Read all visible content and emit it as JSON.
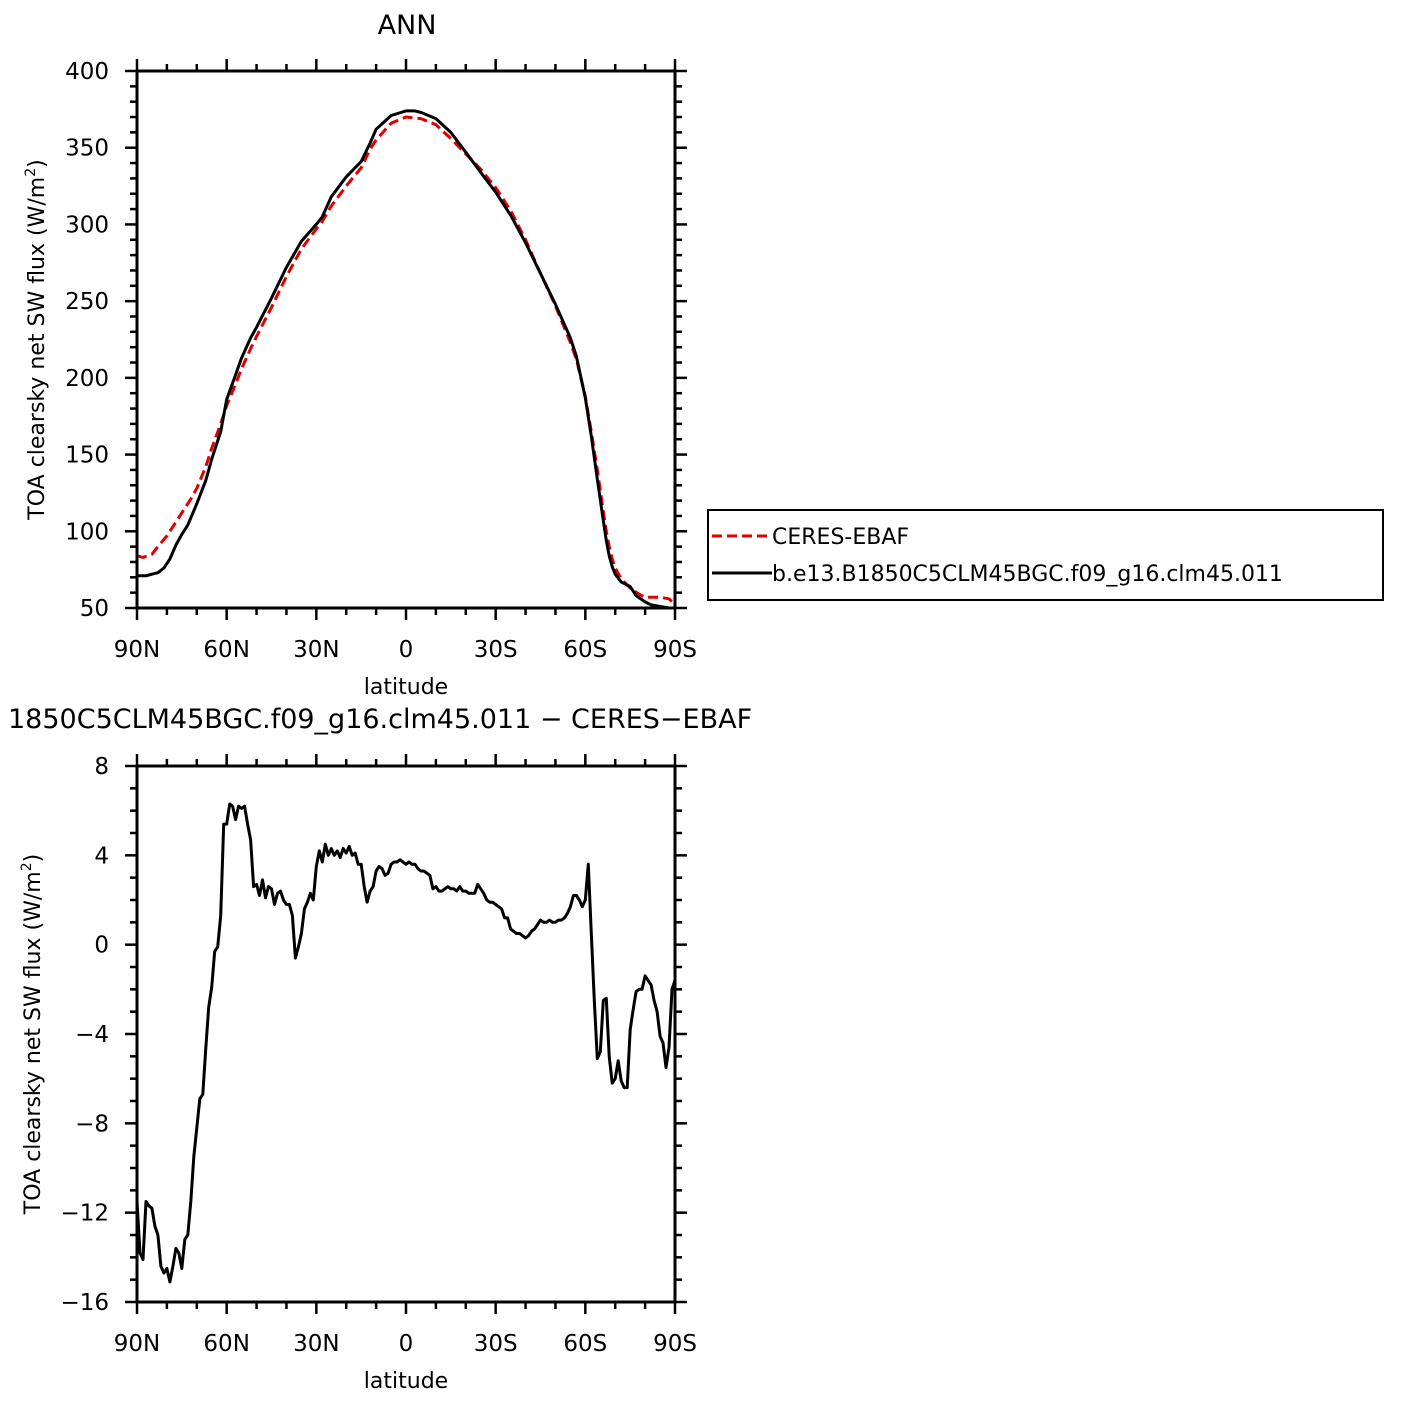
{
  "chart_data": [
    {
      "type": "line",
      "title": "ANN",
      "xlabel": "latitude",
      "ylabel": "TOA clearsky net SW flux (W/m²)",
      "ylabel_parts": {
        "main": "TOA clearsky net SW flux (W/m",
        "sup": "2",
        "end": ")"
      },
      "xlim": [
        -90,
        90
      ],
      "ylim": [
        50,
        400
      ],
      "x_ticks": [
        {
          "value": -90,
          "label": "90N"
        },
        {
          "value": -60,
          "label": "60N"
        },
        {
          "value": -30,
          "label": "30N"
        },
        {
          "value": 0,
          "label": "0"
        },
        {
          "value": 30,
          "label": "30S"
        },
        {
          "value": 60,
          "label": "60S"
        },
        {
          "value": 90,
          "label": "90S"
        }
      ],
      "y_ticks": [
        {
          "value": 400,
          "label": "400"
        },
        {
          "value": 350,
          "label": "350"
        },
        {
          "value": 300,
          "label": "300"
        },
        {
          "value": 250,
          "label": "250"
        },
        {
          "value": 200,
          "label": "200"
        },
        {
          "value": 150,
          "label": "150"
        },
        {
          "value": 100,
          "label": "100"
        },
        {
          "value": 50,
          "label": "50"
        }
      ],
      "legend": {
        "position": "right",
        "entries": [
          {
            "name": "CERES-EBAF",
            "color": "#e00000",
            "dash": "dashed"
          },
          {
            "name": "b.e13.B1850C5CLM45BGC.f09_g16.clm45.011",
            "color": "#000000",
            "dash": "solid"
          }
        ]
      },
      "series": [
        {
          "name": "CERES-EBAF",
          "color": "#e00000",
          "style": "dashed",
          "x": [
            -90,
            -88,
            -85,
            -83,
            -80,
            -77,
            -75,
            -72,
            -70,
            -67,
            -65,
            -62,
            -60,
            -57,
            -55,
            -52,
            -50,
            -45,
            -40,
            -35,
            -30,
            -28,
            -25,
            -20,
            -15,
            -12,
            -10,
            -5,
            0,
            5,
            10,
            15,
            20,
            25,
            30,
            35,
            40,
            45,
            50,
            55,
            57,
            60,
            62,
            64,
            66,
            67,
            68,
            69,
            70,
            72,
            75,
            78,
            80,
            82,
            85,
            88,
            90
          ],
          "y": [
            84,
            83,
            85,
            90,
            97,
            106,
            112,
            121,
            128,
            142,
            154,
            170,
            182,
            196,
            206,
            219,
            227,
            246,
            266,
            284,
            297,
            302,
            312,
            325,
            337,
            349,
            355,
            366,
            370,
            369,
            365,
            356,
            346,
            336,
            324,
            309,
            290,
            268,
            247,
            223,
            212,
            188,
            165,
            140,
            113,
            100,
            90,
            82,
            76,
            69,
            63,
            59,
            57,
            57,
            57,
            56,
            52
          ]
        },
        {
          "name": "b.e13.B1850C5CLM45BGC.f09_g16.clm45.011",
          "color": "#000000",
          "style": "solid",
          "x": [
            -90,
            -87,
            -85,
            -83,
            -81,
            -79,
            -77,
            -75,
            -73,
            -70,
            -67,
            -65,
            -62,
            -60,
            -57,
            -55,
            -52,
            -50,
            -45,
            -40,
            -35,
            -30,
            -28,
            -25,
            -20,
            -15,
            -12,
            -10,
            -5,
            0,
            3,
            5,
            10,
            15,
            20,
            25,
            30,
            35,
            40,
            45,
            50,
            55,
            57,
            60,
            62,
            64,
            66,
            67,
            68,
            69,
            70,
            72,
            75,
            77,
            80,
            82,
            85,
            88,
            90
          ],
          "y": [
            71,
            71,
            72,
            73,
            76,
            82,
            91,
            98,
            104,
            118,
            133,
            147,
            165,
            186,
            202,
            213,
            226,
            233,
            252,
            272,
            289,
            300,
            305,
            318,
            331,
            341,
            353,
            362,
            371,
            374,
            374,
            373,
            369,
            360,
            347,
            334,
            321,
            306,
            288,
            268,
            248,
            226,
            214,
            187,
            162,
            134,
            107,
            94,
            84,
            77,
            72,
            67,
            64,
            58,
            54,
            52,
            51,
            50,
            48
          ]
        }
      ]
    },
    {
      "type": "line",
      "title": "1850C5CLM45BGC.f09_g16.clm45.011  −  CERES−EBAF",
      "xlabel": "latitude",
      "ylabel": "TOA clearsky net SW flux (W/m²)",
      "ylabel_parts": {
        "main": "TOA clearsky net SW flux (W/m",
        "sup": "2",
        "end": ")"
      },
      "xlim": [
        -90,
        90
      ],
      "ylim": [
        -16,
        8
      ],
      "x_ticks": [
        {
          "value": -90,
          "label": "90N"
        },
        {
          "value": -60,
          "label": "60N"
        },
        {
          "value": -30,
          "label": "30N"
        },
        {
          "value": 0,
          "label": "0"
        },
        {
          "value": 30,
          "label": "30S"
        },
        {
          "value": 60,
          "label": "60S"
        },
        {
          "value": 90,
          "label": "90S"
        }
      ],
      "y_ticks": [
        {
          "value": 8,
          "label": "8"
        },
        {
          "value": 4,
          "label": "4"
        },
        {
          "value": 0,
          "label": "0"
        },
        {
          "value": -4,
          "label": "−4"
        },
        {
          "value": -8,
          "label": "−8"
        },
        {
          "value": -12,
          "label": "−12"
        },
        {
          "value": -16,
          "label": "−16"
        }
      ],
      "series": [
        {
          "name": "b.e13.B1850C5CLM45BGC.f09_g16.clm45.011 − CERES-EBAF",
          "color": "#000000",
          "style": "solid",
          "x": [
            -90,
            -89,
            -88,
            -87,
            -86,
            -85,
            -84,
            -83,
            -82,
            -81,
            -80,
            -79,
            -78,
            -77,
            -76,
            -75,
            -74,
            -73,
            -72,
            -71,
            -70,
            -69,
            -68,
            -67,
            -66,
            -65,
            -64,
            -63,
            -62,
            -61,
            -60,
            -59,
            -58,
            -57,
            -56,
            -55,
            -54,
            -53,
            -52,
            -51,
            -50,
            -49,
            -48,
            -47,
            -46,
            -45,
            -44,
            -43,
            -42,
            -41,
            -40,
            -39,
            -38,
            -37,
            -36,
            -35,
            -34,
            -33,
            -32,
            -31,
            -30,
            -29,
            -28,
            -27,
            -26,
            -25,
            -24,
            -23,
            -22,
            -21,
            -20,
            -19,
            -18,
            -17,
            -16,
            -15,
            -14,
            -13,
            -12,
            -11,
            -10,
            -9,
            -8,
            -7,
            -6,
            -5,
            -4,
            -3,
            -2,
            -1,
            0,
            1,
            2,
            3,
            4,
            5,
            6,
            7,
            8,
            9,
            10,
            11,
            12,
            13,
            14,
            15,
            16,
            17,
            18,
            19,
            20,
            21,
            22,
            23,
            24,
            25,
            26,
            27,
            28,
            29,
            30,
            31,
            32,
            33,
            34,
            35,
            36,
            37,
            38,
            39,
            40,
            41,
            42,
            43,
            44,
            45,
            46,
            47,
            48,
            49,
            50,
            51,
            52,
            53,
            54,
            55,
            56,
            57,
            58,
            59,
            60,
            61,
            62,
            63,
            64,
            65,
            66,
            67,
            68,
            69,
            70,
            71,
            72,
            73,
            74,
            75,
            76,
            77,
            78,
            79,
            80,
            81,
            82,
            83,
            84,
            85,
            86,
            87,
            88,
            89,
            90
          ],
          "y": [
            -11.5,
            -13.8,
            -14.1,
            -11.5,
            -11.7,
            -11.8,
            -12.6,
            -13.0,
            -14.4,
            -14.7,
            -14.5,
            -15.1,
            -14.4,
            -13.6,
            -13.8,
            -14.5,
            -13.2,
            -13.0,
            -11.5,
            -9.5,
            -8.2,
            -6.9,
            -6.7,
            -4.7,
            -2.8,
            -1.9,
            -0.3,
            -0.1,
            1.3,
            5.4,
            5.4,
            6.3,
            6.2,
            5.6,
            6.2,
            6.1,
            6.2,
            5.4,
            4.7,
            2.6,
            2.7,
            2.2,
            2.9,
            2.1,
            2.6,
            2.5,
            1.8,
            2.3,
            2.4,
            2.0,
            1.8,
            1.8,
            1.3,
            -0.6,
            -0.1,
            0.5,
            1.6,
            1.9,
            2.3,
            2.0,
            3.5,
            4.2,
            3.7,
            4.5,
            4.0,
            4.3,
            4.0,
            4.2,
            3.9,
            4.3,
            4.1,
            4.4,
            4.0,
            4.1,
            3.6,
            3.6,
            2.6,
            1.9,
            2.4,
            2.6,
            3.3,
            3.5,
            3.4,
            3.1,
            3.2,
            3.6,
            3.7,
            3.7,
            3.8,
            3.7,
            3.6,
            3.7,
            3.6,
            3.6,
            3.4,
            3.3,
            3.3,
            3.2,
            3.1,
            2.5,
            2.6,
            2.4,
            2.4,
            2.5,
            2.6,
            2.5,
            2.5,
            2.4,
            2.6,
            2.4,
            2.4,
            2.3,
            2.3,
            2.3,
            2.7,
            2.5,
            2.3,
            2.0,
            1.9,
            1.9,
            1.8,
            1.7,
            1.6,
            1.2,
            1.2,
            0.7,
            0.6,
            0.5,
            0.5,
            0.4,
            0.3,
            0.4,
            0.6,
            0.7,
            0.9,
            1.1,
            1.0,
            1.0,
            1.1,
            1.0,
            1.0,
            1.1,
            1.1,
            1.2,
            1.4,
            1.7,
            2.2,
            2.2,
            2.0,
            1.7,
            2.0,
            3.6,
            0.5,
            -2.5,
            -5.1,
            -4.8,
            -2.5,
            -2.4,
            -5.0,
            -6.2,
            -6.0,
            -5.2,
            -6.1,
            -6.4,
            -6.4,
            -3.8,
            -2.9,
            -2.1,
            -2.0,
            -2.0,
            -1.4,
            -1.6,
            -1.8,
            -2.5,
            -3.0,
            -4.1,
            -4.4,
            -5.5,
            -4.6,
            -2.0,
            -1.6
          ]
        }
      ]
    }
  ]
}
